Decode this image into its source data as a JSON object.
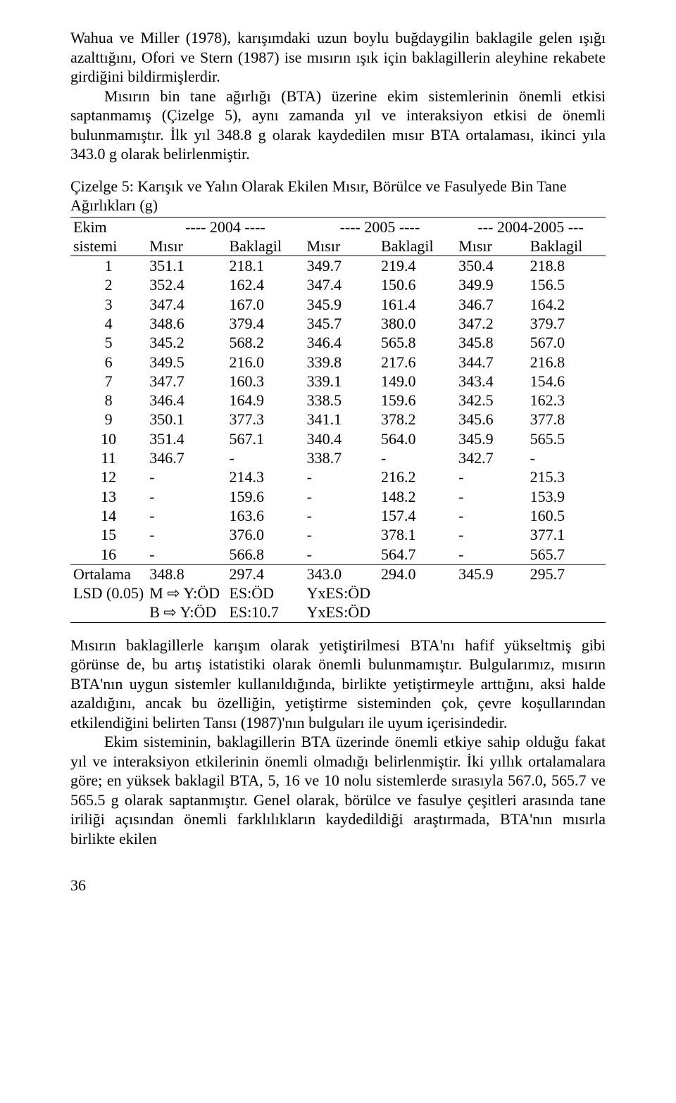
{
  "para1": "Wahua ve Miller (1978), karışımdaki uzun boylu buğdaygilin baklagile gelen ışığı azalttığını, Ofori ve Stern (1987) ise mısırın ışık için baklagillerin aleyhine rekabete girdiğini bildirmişlerdir.",
  "para2": "Mısırın bin tane ağırlığı (BTA) üzerine ekim sistemlerinin önemli etkisi saptanmamış (Çizelge 5), aynı zamanda yıl ve interaksiyon etkisi de önemli bulunmamıştır. İlk yıl 348.8 g olarak kaydedilen mısır BTA ortalaması, ikinci yıla 343.0 g olarak belirlenmiştir.",
  "caption": "Çizelge 5: Karışık ve Yalın Olarak Ekilen Mısır, Börülce ve Fasulyede Bin Tane Ağırlıkları (g)",
  "table": {
    "col_widths_pct": [
      12,
      15,
      15,
      14,
      15,
      14,
      15
    ],
    "header_top": {
      "c0": "Ekim",
      "g1": "---- 2004 ----",
      "g2": "---- 2005 ----",
      "g3": "--- 2004-2005 ---"
    },
    "header_sub": {
      "c0": "sistemi",
      "c1": "Mısır",
      "c2": "Baklagil",
      "c3": "Mısır",
      "c4": "Baklagil",
      "c5": "Mısır",
      "c6": "Baklagil"
    },
    "rows": [
      [
        "1",
        "351.1",
        "218.1",
        "349.7",
        "219.4",
        "350.4",
        "218.8"
      ],
      [
        "2",
        "352.4",
        "162.4",
        "347.4",
        "150.6",
        "349.9",
        "156.5"
      ],
      [
        "3",
        "347.4",
        "167.0",
        "345.9",
        "161.4",
        "346.7",
        "164.2"
      ],
      [
        "4",
        "348.6",
        "379.4",
        "345.7",
        "380.0",
        "347.2",
        "379.7"
      ],
      [
        "5",
        "345.2",
        "568.2",
        "346.4",
        "565.8",
        "345.8",
        "567.0"
      ],
      [
        "6",
        "349.5",
        "216.0",
        "339.8",
        "217.6",
        "344.7",
        "216.8"
      ],
      [
        "7",
        "347.7",
        "160.3",
        "339.1",
        "149.0",
        "343.4",
        "154.6"
      ],
      [
        "8",
        "346.4",
        "164.9",
        "338.5",
        "159.6",
        "342.5",
        "162.3"
      ],
      [
        "9",
        "350.1",
        "377.3",
        "341.1",
        "378.2",
        "345.6",
        "377.8"
      ],
      [
        "10",
        "351.4",
        "567.1",
        "340.4",
        "564.0",
        "345.9",
        "565.5"
      ],
      [
        "11",
        "346.7",
        "-",
        "338.7",
        "-",
        "342.7",
        "-"
      ],
      [
        "12",
        "-",
        "214.3",
        "-",
        "216.2",
        "-",
        "215.3"
      ],
      [
        "13",
        "-",
        "159.6",
        "-",
        "148.2",
        "-",
        "153.9"
      ],
      [
        "14",
        "-",
        "163.6",
        "-",
        "157.4",
        "-",
        "160.5"
      ],
      [
        "15",
        "-",
        "376.0",
        "-",
        "378.1",
        "-",
        "377.1"
      ],
      [
        "16",
        "-",
        "566.8",
        "-",
        "564.7",
        "-",
        "565.7"
      ]
    ],
    "mean_row": [
      "Ortalama",
      "348.8",
      "297.4",
      "343.0",
      "294.0",
      "345.9",
      "295.7"
    ],
    "lsd_rows": [
      [
        "LSD (0.05)",
        "M ⇨ Y:ÖD",
        "ES:ÖD",
        "YxES:ÖD",
        "",
        "",
        ""
      ],
      [
        "",
        "B ⇨ Y:ÖD",
        "ES:10.7",
        "YxES:ÖD",
        "",
        "",
        ""
      ]
    ]
  },
  "para3": "Mısırın baklagillerle karışım olarak yetiştirilmesi BTA'nı hafif yükseltmiş gibi görünse de, bu artış istatistiki olarak önemli bulunmamıştır. Bulgularımız, mısırın BTA'nın uygun sistemler kullanıldığında, birlikte yetiştirmeyle arttığını, aksi halde azaldığını, ancak bu özelliğin, yetiştirme sisteminden çok, çevre koşullarından etkilendiğini belirten Tansı (1987)'nın bulguları ile uyum içerisindedir.",
  "para4": "Ekim sisteminin, baklagillerin BTA üzerinde önemli etkiye sahip olduğu fakat yıl ve interaksiyon etkilerinin önemli olmadığı belirlenmiştir. İki yıllık ortalamalara göre; en yüksek baklagil BTA, 5, 16 ve 10 nolu sistemlerde sırasıyla 567.0, 565.7 ve 565.5 g olarak saptanmıştır. Genel olarak, börülce ve fasulye çeşitleri arasında tane iriliği açısından önemli farklılıkların kaydedildiği araştırmada, BTA'nın mısırla birlikte ekilen",
  "page_number": "36"
}
